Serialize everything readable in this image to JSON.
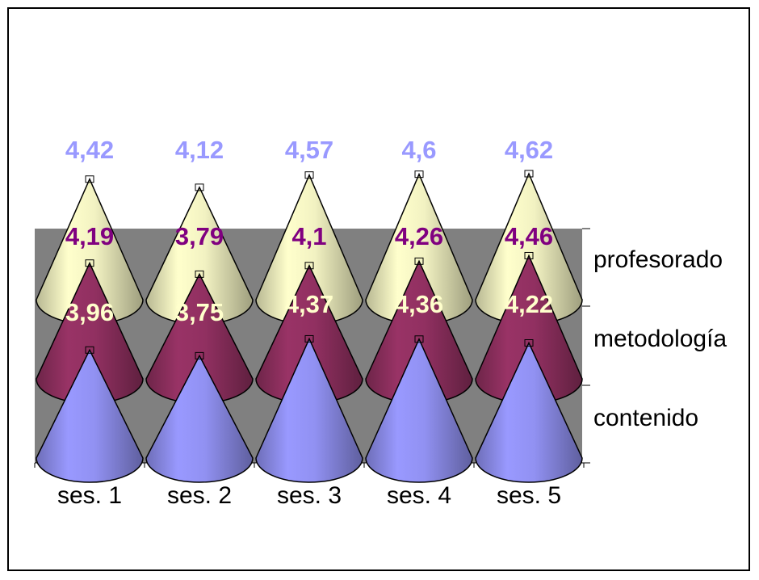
{
  "chart_data": {
    "type": "bar",
    "shape": "3d-cone",
    "categories": [
      "ses. 1",
      "ses. 2",
      "ses. 3",
      "ses. 4",
      "ses. 5"
    ],
    "series": [
      {
        "name": "contenido",
        "values": [
          3.96,
          3.75,
          4.37,
          4.36,
          4.22
        ],
        "labels": [
          "3,96",
          "3,75",
          "4,37",
          "4,36",
          "4,22"
        ],
        "color": "#9999ff",
        "label_color": "#ffffcc"
      },
      {
        "name": "metodología",
        "values": [
          4.19,
          3.79,
          4.1,
          4.26,
          4.46
        ],
        "labels": [
          "4,19",
          "3,79",
          "4,1",
          "4,26",
          "4,46"
        ],
        "color": "#993366",
        "label_color": "#800080"
      },
      {
        "name": "profesorado",
        "values": [
          4.42,
          4.12,
          4.57,
          4.6,
          4.62
        ],
        "labels": [
          "4,42",
          "4,12",
          "4,57",
          "4,6",
          "4,62"
        ],
        "color": "#ffffcc",
        "label_color": "#9999ff"
      }
    ],
    "title": "",
    "xlabel": "",
    "ylabel": "",
    "back_wall_color": "#808080",
    "legend": "none"
  }
}
